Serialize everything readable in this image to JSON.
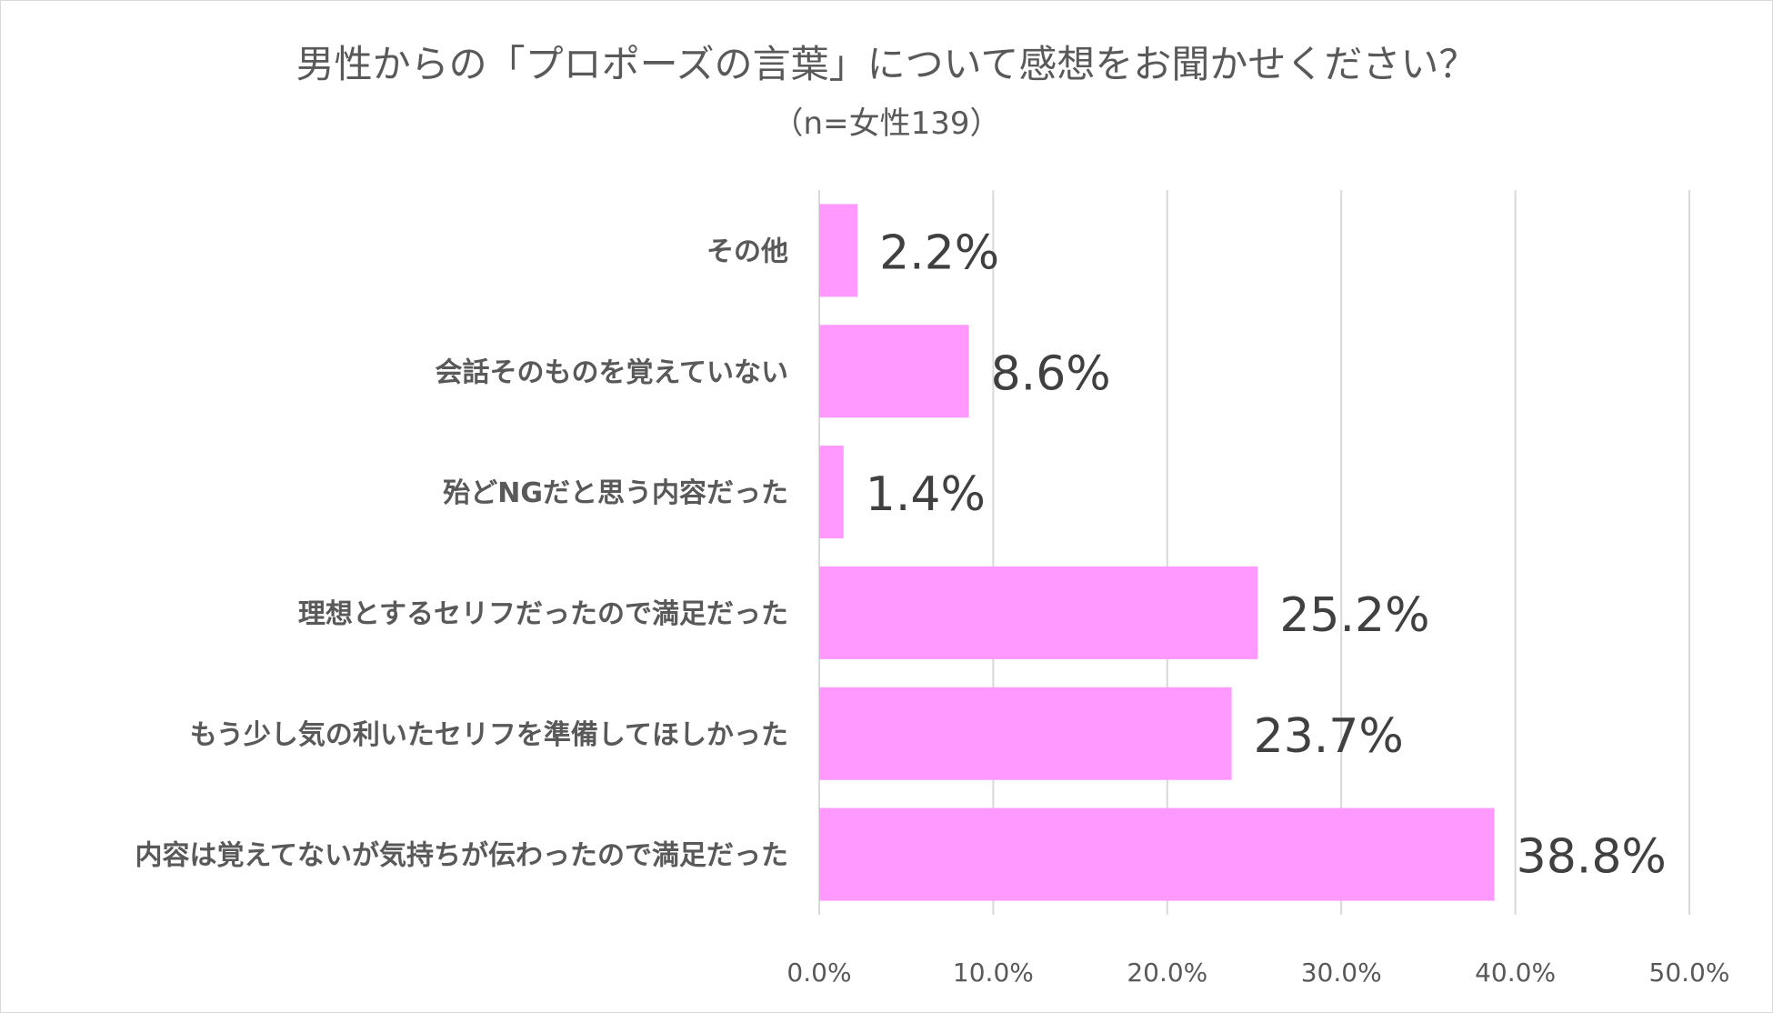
{
  "chart_data": {
    "type": "bar",
    "orientation": "horizontal",
    "title": "男性からの「プロポーズの言葉」について感想をお聞かせください？",
    "subtitle": "（n=女性139）",
    "categories": [
      "その他",
      "会話そのものを覚えていない",
      "殆どNGだと思う内容だった",
      "理想とするセリフだったので満足だった",
      "もう少し気の利いたセリフを準備してほしかった",
      "内容は覚えてないが気持ちが伝わったので満足だった"
    ],
    "values": [
      2.2,
      8.6,
      1.4,
      25.2,
      23.7,
      38.8
    ],
    "data_labels": [
      "2.2%",
      "8.6%",
      "1.4%",
      "25.2%",
      "23.7%",
      "38.8%"
    ],
    "xlim": [
      0,
      50
    ],
    "x_ticks": [
      0,
      10,
      20,
      30,
      40,
      50
    ],
    "x_tick_labels": [
      "0.0%",
      "10.0%",
      "20.0%",
      "30.0%",
      "40.0%",
      "50.0%"
    ],
    "grid": true,
    "legend": "none",
    "colors": {
      "bar": "#ff99ff",
      "grid": "#d9d9d9",
      "text": "#595959",
      "data_label": "#404040"
    }
  }
}
